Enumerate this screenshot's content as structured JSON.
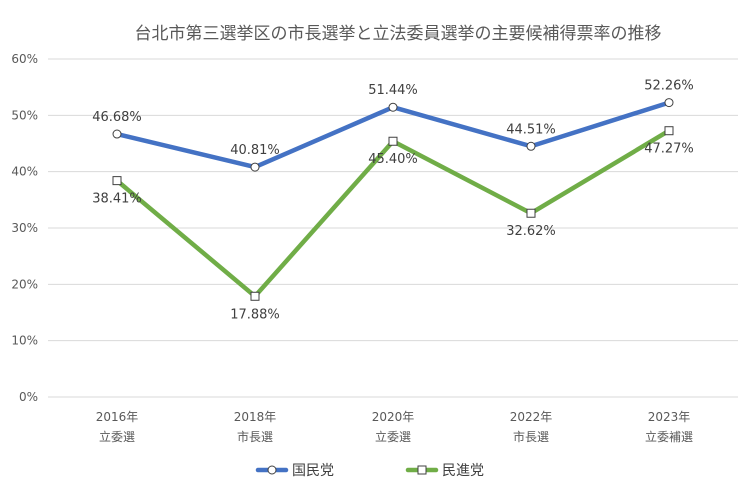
{
  "chart_data": {
    "type": "line",
    "title": "台北市第三選挙区の市長選挙と立法委員選挙の主要候補得票率の推移",
    "categories": [
      [
        "2016年",
        "立委選"
      ],
      [
        "2018年",
        "市長選"
      ],
      [
        "2020年",
        "立委選"
      ],
      [
        "2022年",
        "市長選"
      ],
      [
        "2023年",
        "立委補選"
      ]
    ],
    "y_ticks": [
      "0%",
      "10%",
      "20%",
      "30%",
      "40%",
      "50%",
      "60%"
    ],
    "ylim": [
      0,
      60
    ],
    "grid": true,
    "legend_position": "bottom",
    "series": [
      {
        "name": "国民党",
        "color": "#4472C4",
        "marker": "circle",
        "values": [
          46.68,
          40.81,
          51.44,
          44.51,
          52.26
        ],
        "labels": [
          "46.68%",
          "40.81%",
          "51.44%",
          "44.51%",
          "52.26%"
        ]
      },
      {
        "name": "民進党",
        "color": "#70AD47",
        "marker": "square",
        "values": [
          38.41,
          17.88,
          45.4,
          32.62,
          47.27
        ],
        "labels": [
          "38.41%",
          "17.88%",
          "45.40%",
          "32.62%",
          "47.27%"
        ]
      }
    ]
  }
}
